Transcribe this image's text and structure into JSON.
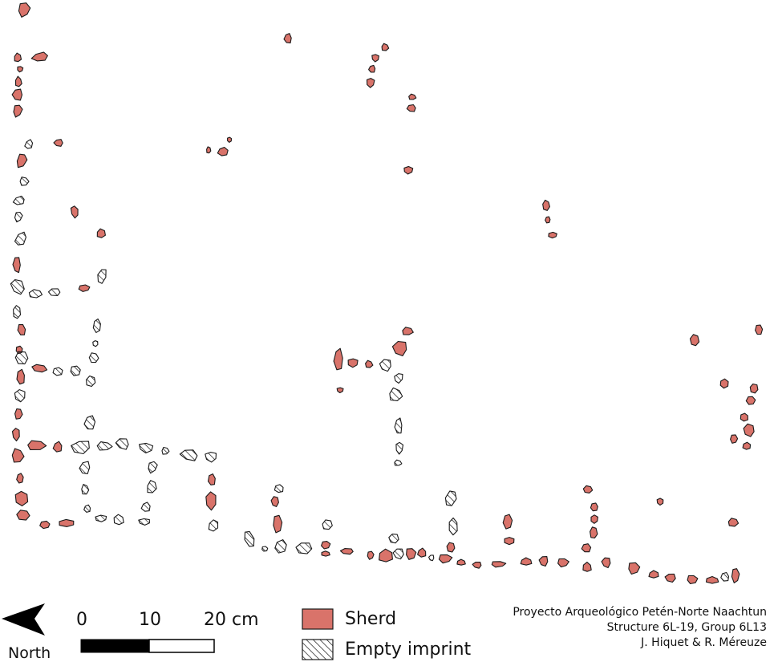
{
  "north_arrow": {
    "label": "North",
    "icon": "north-arrow-icon"
  },
  "scale_bar": {
    "tick_labels": [
      "0",
      "10",
      "20 cm"
    ],
    "segment_colors": [
      "#000000",
      "#ffffff"
    ]
  },
  "legend": {
    "items": [
      {
        "label": "Sherd",
        "symbol": "sherd-swatch",
        "fill": "#d9736a",
        "stroke": "#1a1a1a"
      },
      {
        "label": "Empty imprint",
        "symbol": "imprint-swatch",
        "fill": "hatched",
        "stroke": "#1a1a1a"
      }
    ]
  },
  "credits": [
    "Proyecto Arqueológico Petén-Norte Naachtun",
    "Structure 6L-19, Group 6L13",
    "J. Hiquet & R. Méreuze"
  ],
  "colors": {
    "sherd": "#d9736a",
    "outline": "#1a1a1a",
    "background": "#ffffff"
  }
}
